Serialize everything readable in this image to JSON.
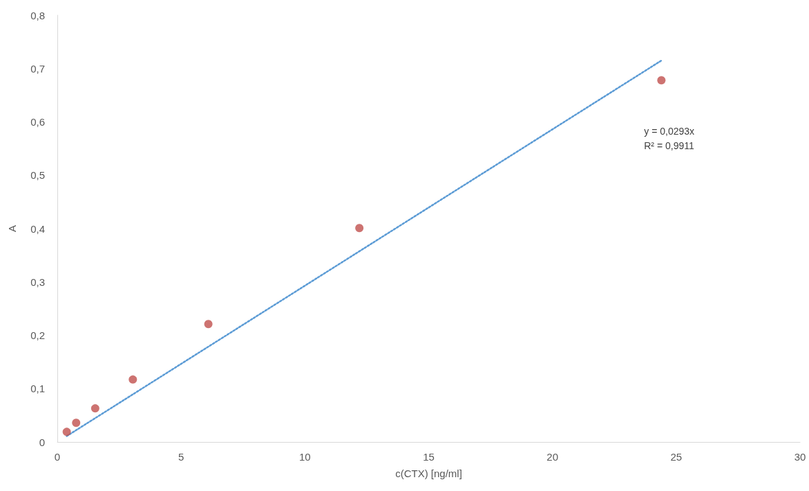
{
  "chart_data": {
    "type": "scatter",
    "xlabel": "c(CTX) [ng/ml]",
    "ylabel": "A",
    "xlim": [
      0,
      30
    ],
    "xticks": [
      0,
      5,
      10,
      15,
      20,
      25,
      30
    ],
    "ylim": [
      0,
      0.8
    ],
    "yticks": [
      0,
      {
        "value": 0.1,
        "label": "0,1"
      },
      {
        "value": 0.2,
        "label": "0,2"
      },
      {
        "value": 0.3,
        "label": "0,3"
      },
      {
        "value": 0.4,
        "label": "0,4"
      },
      {
        "value": 0.5,
        "label": "0,5"
      },
      {
        "value": 0.6,
        "label": "0,6"
      },
      {
        "value": 0.7,
        "label": "0,7"
      },
      {
        "value": 0.8,
        "label": "0,8"
      }
    ],
    "grid": false,
    "series": [
      {
        "type": "line",
        "color": "#5b9bd5",
        "line_style": "dotted",
        "marker": "none",
        "x": [
          0.38,
          24.4
        ],
        "values": [
          0.011,
          0.715
        ]
      },
      {
        "color": "#c0504d",
        "marker": "circle",
        "x": [
          0.38,
          0.76,
          1.53,
          3.05,
          6.1,
          12.2,
          24.4
        ],
        "values": [
          0.019,
          0.036,
          0.063,
          0.117,
          0.221,
          0.401,
          0.678
        ]
      }
    ],
    "annotations": [
      "y = 0,0293x",
      "R² = 0,9911"
    ]
  }
}
